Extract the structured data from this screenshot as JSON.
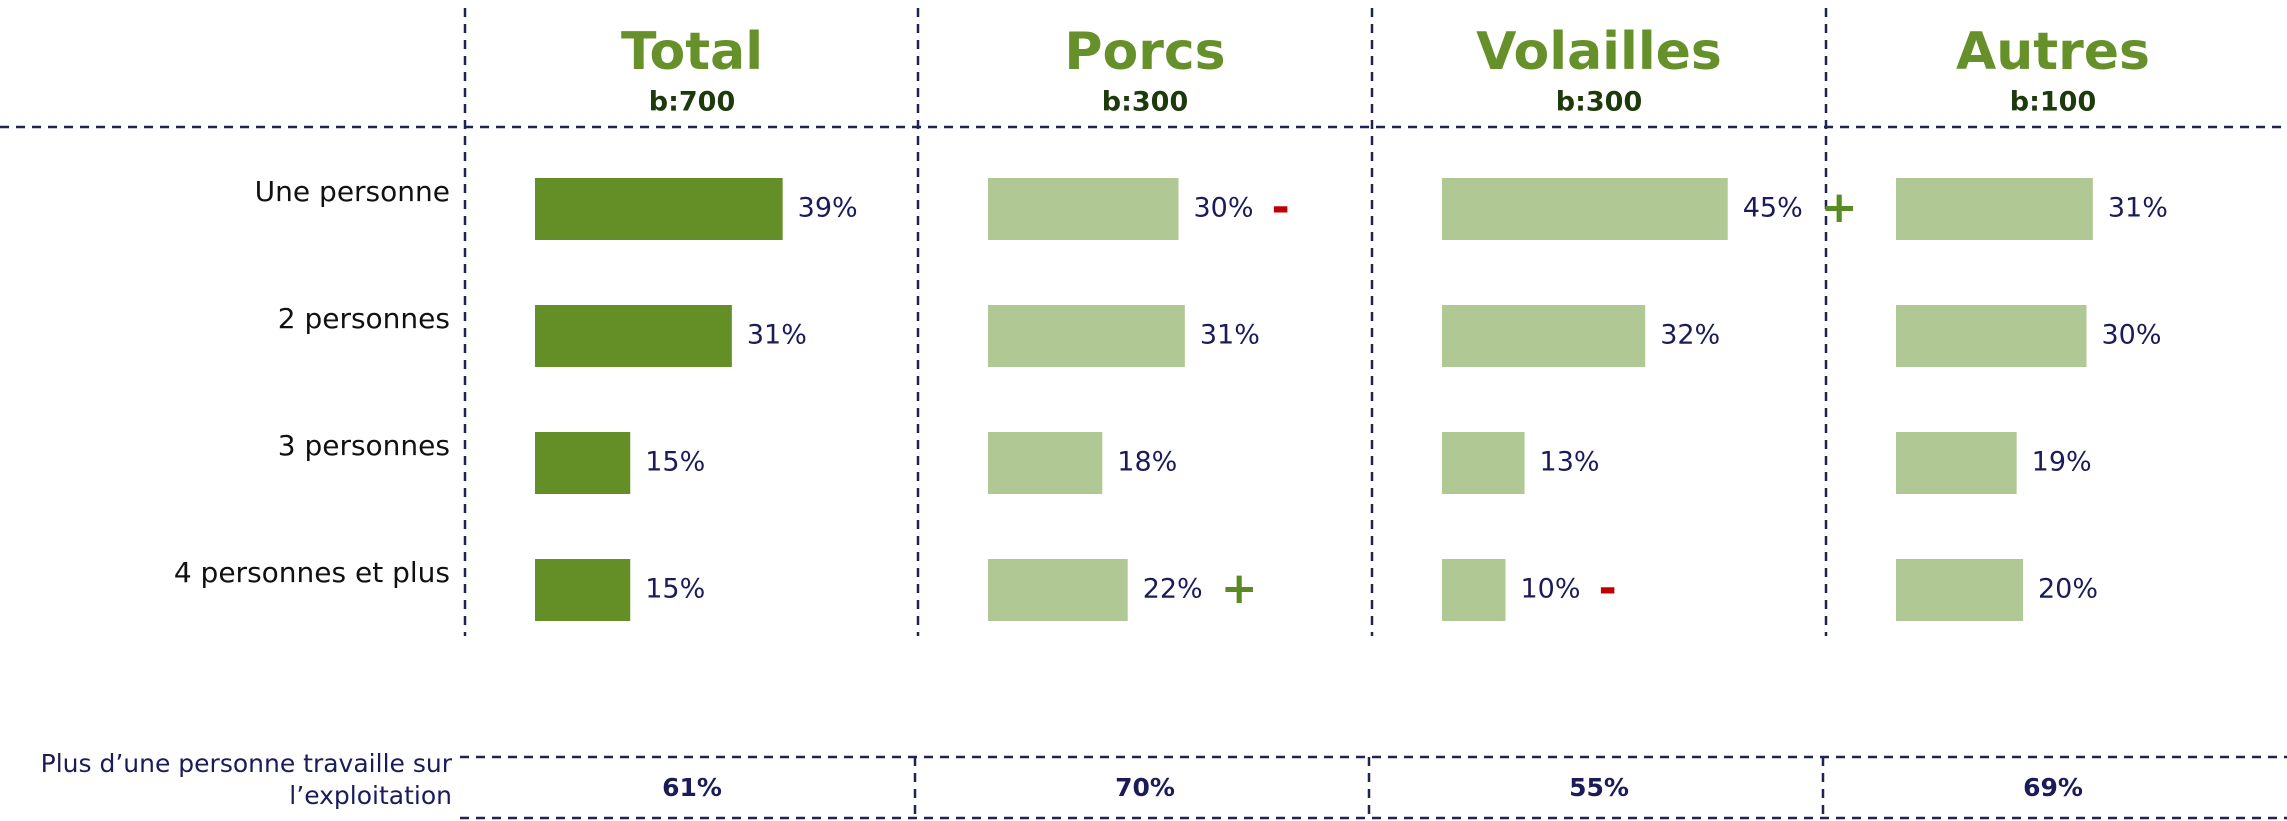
{
  "chart_data": [
    {
      "type": "bar",
      "orientation": "horizontal",
      "title": "Total",
      "subtitle": "b:700",
      "categories": [
        "Une personne",
        "2 personnes",
        "3 personnes",
        "4 personnes et plus"
      ],
      "values": [
        39,
        31,
        15,
        15
      ],
      "value_labels": [
        "39%",
        "31%",
        "15%",
        "15%"
      ],
      "color": "#638f26",
      "xlim": [
        0,
        60
      ]
    },
    {
      "type": "bar",
      "orientation": "horizontal",
      "title": "Porcs",
      "subtitle": "b:300",
      "values": [
        30,
        31,
        18,
        22
      ],
      "value_labels": [
        "30%",
        "31%",
        "18%",
        "22%"
      ],
      "markers": [
        "-",
        null,
        null,
        "+"
      ],
      "color": "#b0c994",
      "xlim": [
        0,
        60
      ]
    },
    {
      "type": "bar",
      "orientation": "horizontal",
      "title": "Volailles",
      "subtitle": "b:300",
      "values": [
        45,
        32,
        13,
        10
      ],
      "value_labels": [
        "45%",
        "32%",
        "13%",
        "10%"
      ],
      "markers": [
        "+",
        null,
        null,
        "-"
      ],
      "color": "#b0c994",
      "xlim": [
        0,
        60
      ]
    },
    {
      "type": "bar",
      "orientation": "horizontal",
      "title": "Autres",
      "subtitle": "b:100",
      "values": [
        31,
        30,
        19,
        20
      ],
      "value_labels": [
        "31%",
        "30%",
        "19%",
        "20%"
      ],
      "color": "#b0c994",
      "xlim": [
        0,
        60
      ]
    }
  ],
  "marker_colors": {
    "+": "#5a8a23",
    "-": "#c00000"
  },
  "summary": {
    "label": "Plus d’une personne travaille sur l’exploitation",
    "values": [
      "61%",
      "70%",
      "55%",
      "69%"
    ]
  }
}
